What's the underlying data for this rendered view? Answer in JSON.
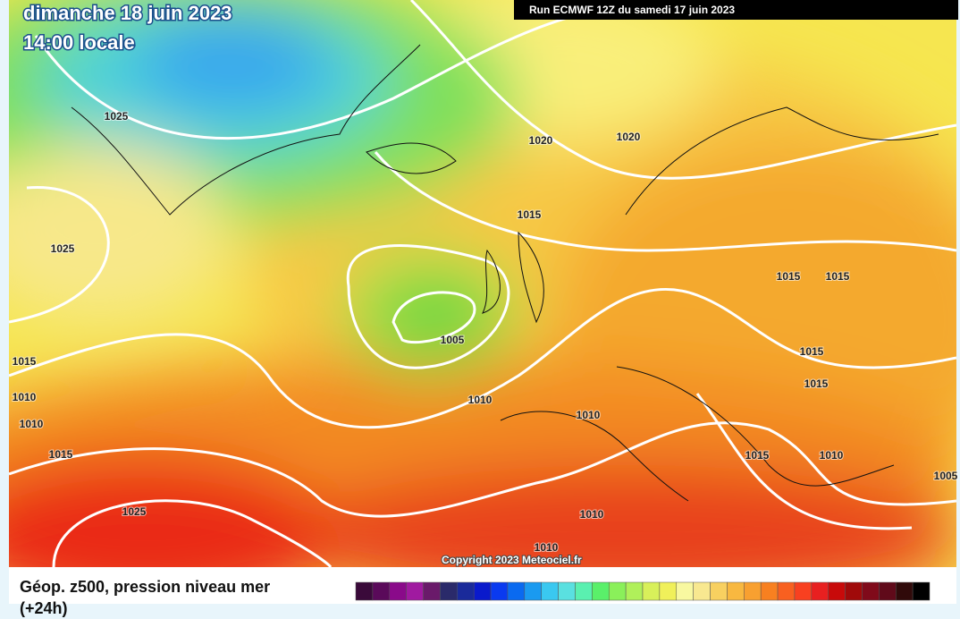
{
  "header": {
    "date": "dimanche 18 juin 2023",
    "time": "14:00 locale",
    "run": "Run ECMWF 12Z du samedi 17 juin 2023"
  },
  "map": {
    "isobar_labels": [
      "1025",
      "1020",
      "1020",
      "1015",
      "1025",
      "1015",
      "1015",
      "1005",
      "1015",
      "1015",
      "1010",
      "1015",
      "1010",
      "1010",
      "1010",
      "1015",
      "1015",
      "1010",
      "1005",
      "1025",
      "1010",
      "1010"
    ],
    "copyright": "Copyright 2023 Meteociel.fr"
  },
  "footer": {
    "legend_title": "Géop. z500, pression niveau mer",
    "lead_time": "(+24h)"
  }
}
